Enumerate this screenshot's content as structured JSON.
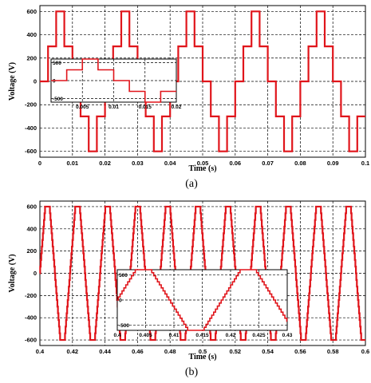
{
  "chart_data": [
    {
      "id": "a",
      "type": "line",
      "caption": "(a)",
      "xlabel": "Time (s)",
      "ylabel": "Voltage (V)",
      "xlim": [
        0,
        0.1
      ],
      "ylim": [
        -650,
        650
      ],
      "xticks": [
        0,
        0.01,
        0.02,
        0.03,
        0.04,
        0.05,
        0.06,
        0.07,
        0.08,
        0.09,
        0.1
      ],
      "xtick_labels": [
        "0",
        "0.01",
        "0.02",
        "0.03",
        "0.04",
        "0.05",
        "0.06",
        "0.07",
        "0.08",
        "0.09",
        "0.1"
      ],
      "yticks": [
        -600,
        -400,
        -200,
        0,
        200,
        400,
        600
      ],
      "ytick_labels": [
        "-600",
        "-400",
        "-200",
        "0",
        "200",
        "400",
        "600"
      ],
      "grid": true,
      "color": "#e0151b",
      "waveform": {
        "shape": "5-level stepped",
        "frequency_hz": 50,
        "levels": [
          0,
          300,
          600,
          300,
          0,
          -300,
          -600,
          -300
        ],
        "x": [
          0,
          0.0025,
          0.005,
          0.0075,
          0.01,
          0.0125,
          0.015,
          0.0175,
          0.02
        ],
        "note_periodic": true
      },
      "inset": {
        "xlim": [
          0,
          0.02
        ],
        "ylim": [
          -600,
          600
        ],
        "xticks": [
          0.005,
          0.01,
          0.015,
          0.02
        ],
        "xtick_labels": [
          "0.005",
          "0.01",
          "0.015",
          "0.02"
        ],
        "yticks": [
          -500,
          0,
          500
        ],
        "ytick_labels": [
          "-500",
          "0",
          "500"
        ]
      }
    },
    {
      "id": "b",
      "type": "line",
      "caption": "(b)",
      "xlabel": "Time (s)",
      "ylabel": "Voltage (V)",
      "xlim": [
        0.4,
        0.6
      ],
      "ylim": [
        -650,
        650
      ],
      "xticks": [
        0.4,
        0.42,
        0.44,
        0.46,
        0.48,
        0.5,
        0.52,
        0.54,
        0.56,
        0.58,
        0.6
      ],
      "xtick_labels": [
        "0.4",
        "0.42",
        "0.44",
        "0.46",
        "0.48",
        "0.5",
        "0.52",
        "0.54",
        "0.56",
        "0.58",
        "0.6"
      ],
      "yticks": [
        -600,
        -400,
        -200,
        0,
        200,
        400,
        600
      ],
      "ytick_labels": [
        "-600",
        "-400",
        "-200",
        "0",
        "200",
        "400",
        "600"
      ],
      "grid": true,
      "color": "#e0151b",
      "waveform": {
        "shape": "multilevel trapezoidal",
        "period_s": 0.0185,
        "peak": 600,
        "start_phase_s": 0.4
      },
      "inset": {
        "xlim": [
          0.4,
          0.43
        ],
        "ylim": [
          -600,
          600
        ],
        "xticks": [
          0.4,
          0.405,
          0.41,
          0.415,
          0.42,
          0.425,
          0.43
        ],
        "xtick_labels": [
          "0.4",
          "0.405",
          "0.41",
          "0.415",
          "0.42",
          "0.425",
          "0.43"
        ],
        "yticks": [
          -500,
          0,
          500
        ],
        "ytick_labels": [
          "-500",
          "0",
          "500"
        ]
      }
    }
  ]
}
